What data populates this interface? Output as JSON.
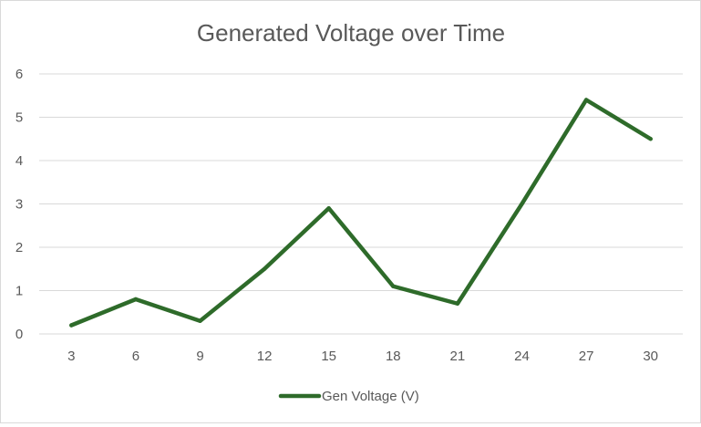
{
  "chart_data": {
    "type": "line",
    "title": "Generated Voltage over Time",
    "xlabel": "",
    "ylabel": "",
    "categories": [
      "3",
      "6",
      "9",
      "12",
      "15",
      "18",
      "21",
      "24",
      "27",
      "30"
    ],
    "series": [
      {
        "name": "Gen Voltage (V)",
        "color": "#2e6b2a",
        "values": [
          0.2,
          0.8,
          0.3,
          1.5,
          2.9,
          1.1,
          0.7,
          3.0,
          5.4,
          4.5
        ]
      }
    ],
    "yticks": [
      "0",
      "1",
      "2",
      "3",
      "4",
      "5",
      "6"
    ],
    "ylim": [
      0,
      6
    ],
    "grid": true,
    "legend_position": "bottom",
    "gridline_color": "#d9d9d9"
  }
}
